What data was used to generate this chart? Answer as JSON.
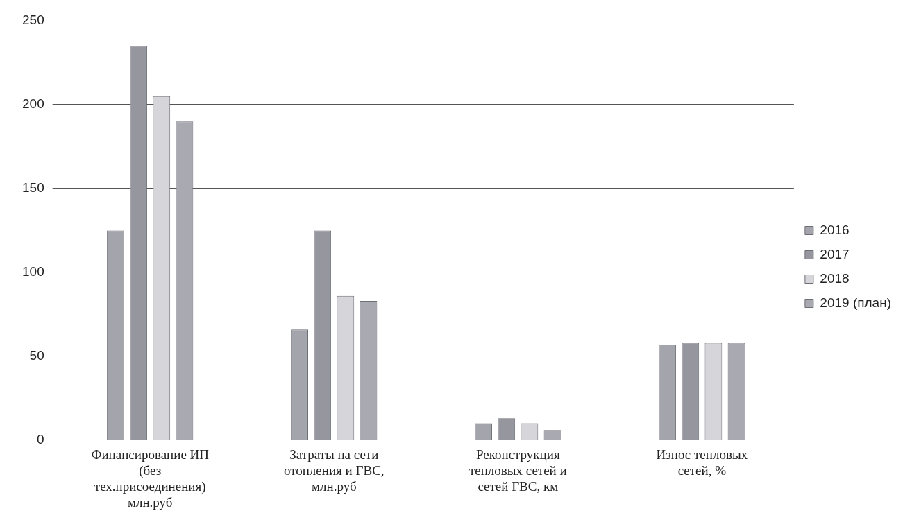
{
  "chart_data": {
    "type": "bar",
    "categories": [
      "Финансирование ИП (без тех.присоединения) млн.руб",
      "Затраты на сети отопления и ГВС, млн.руб",
      "Реконструкция тепловых сетей и сетей ГВС, км",
      "Износ тепловых сетей, %"
    ],
    "series": [
      {
        "name": "2016",
        "color": "#a4a4ac",
        "values": [
          125,
          66,
          10,
          57
        ]
      },
      {
        "name": "2017",
        "color": "#96969e",
        "values": [
          235,
          125,
          13,
          58
        ]
      },
      {
        "name": "2018",
        "color": "#d6d6da",
        "values": [
          205,
          86,
          10,
          58
        ]
      },
      {
        "name": "2019 (план)",
        "color": "#a9a9b1",
        "values": [
          190,
          83,
          6,
          58
        ]
      }
    ],
    "ylim": [
      0,
      250
    ],
    "yticks": [
      0,
      50,
      100,
      150,
      200,
      250
    ],
    "grid": "y",
    "legend": "right"
  }
}
